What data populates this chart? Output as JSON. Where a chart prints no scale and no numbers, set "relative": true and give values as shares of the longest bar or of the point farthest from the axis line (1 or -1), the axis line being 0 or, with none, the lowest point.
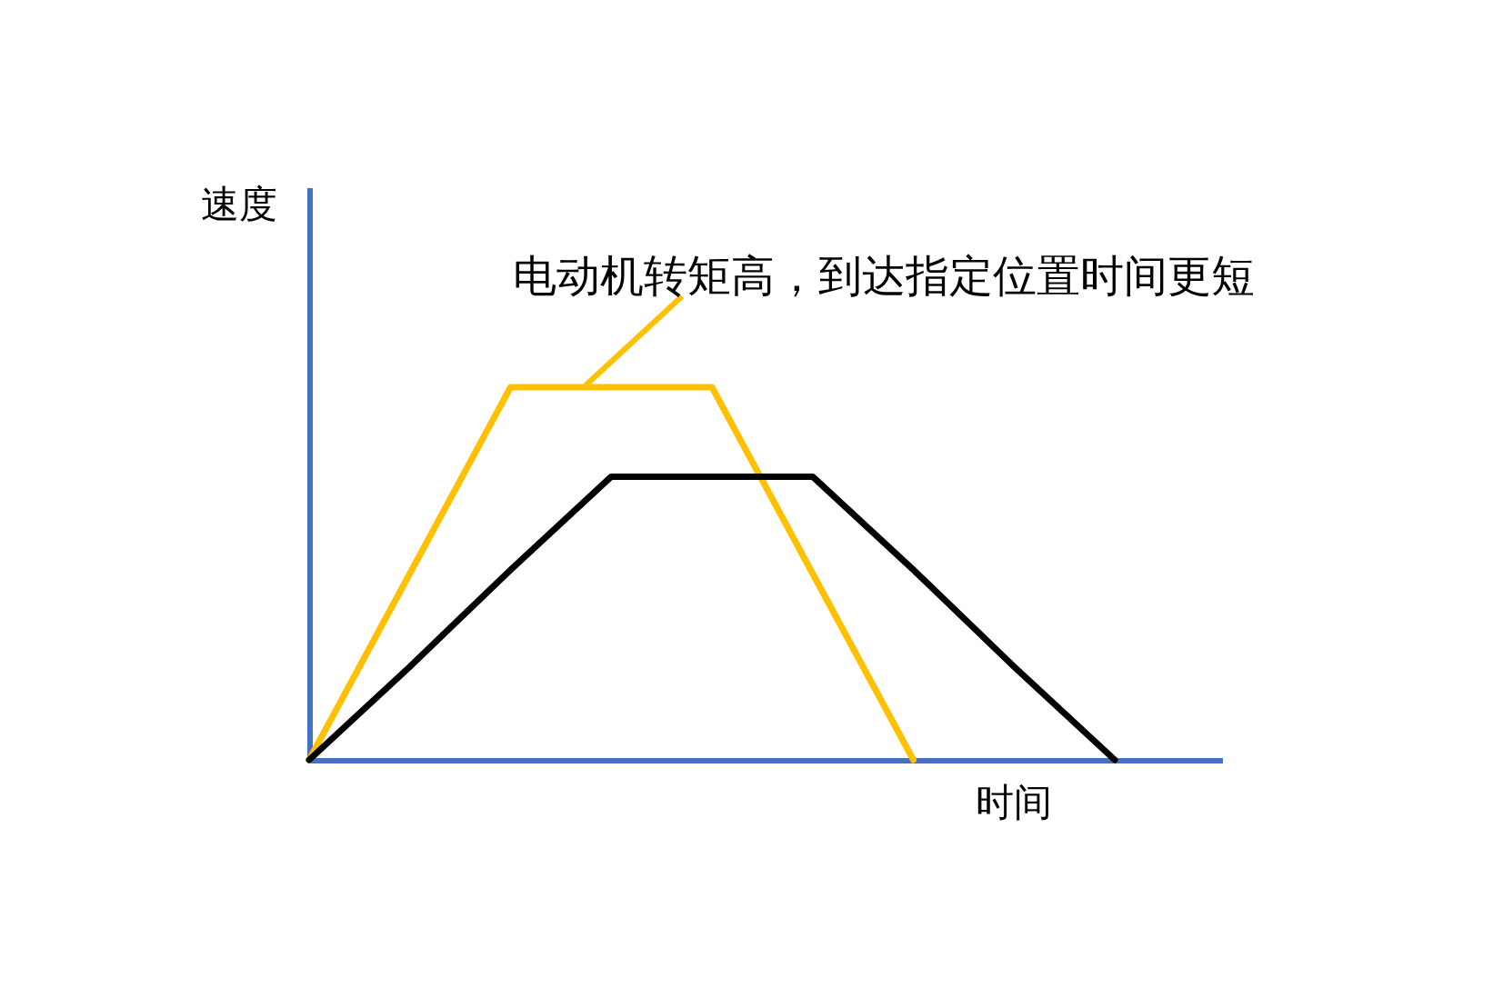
{
  "chart_data": {
    "type": "line",
    "relative": true,
    "tick_labels": false,
    "xlabel": "时间",
    "ylabel": "速度",
    "annotations": [
      "电动机转矩高，到达指定位置时间更短"
    ],
    "categories": [
      null,
      null,
      null,
      null,
      null,
      null,
      null,
      null,
      null
    ],
    "series": [
      {
        "color": "#ffc000",
        "values": [
          0,
          0.5,
          1,
          1,
          1,
          0.5,
          0,
          null,
          null
        ]
      },
      {
        "color": "#000000",
        "values": [
          0,
          0.25,
          0.51,
          0.76,
          0.76,
          0.76,
          0.51,
          0.25,
          0
        ]
      }
    ]
  }
}
